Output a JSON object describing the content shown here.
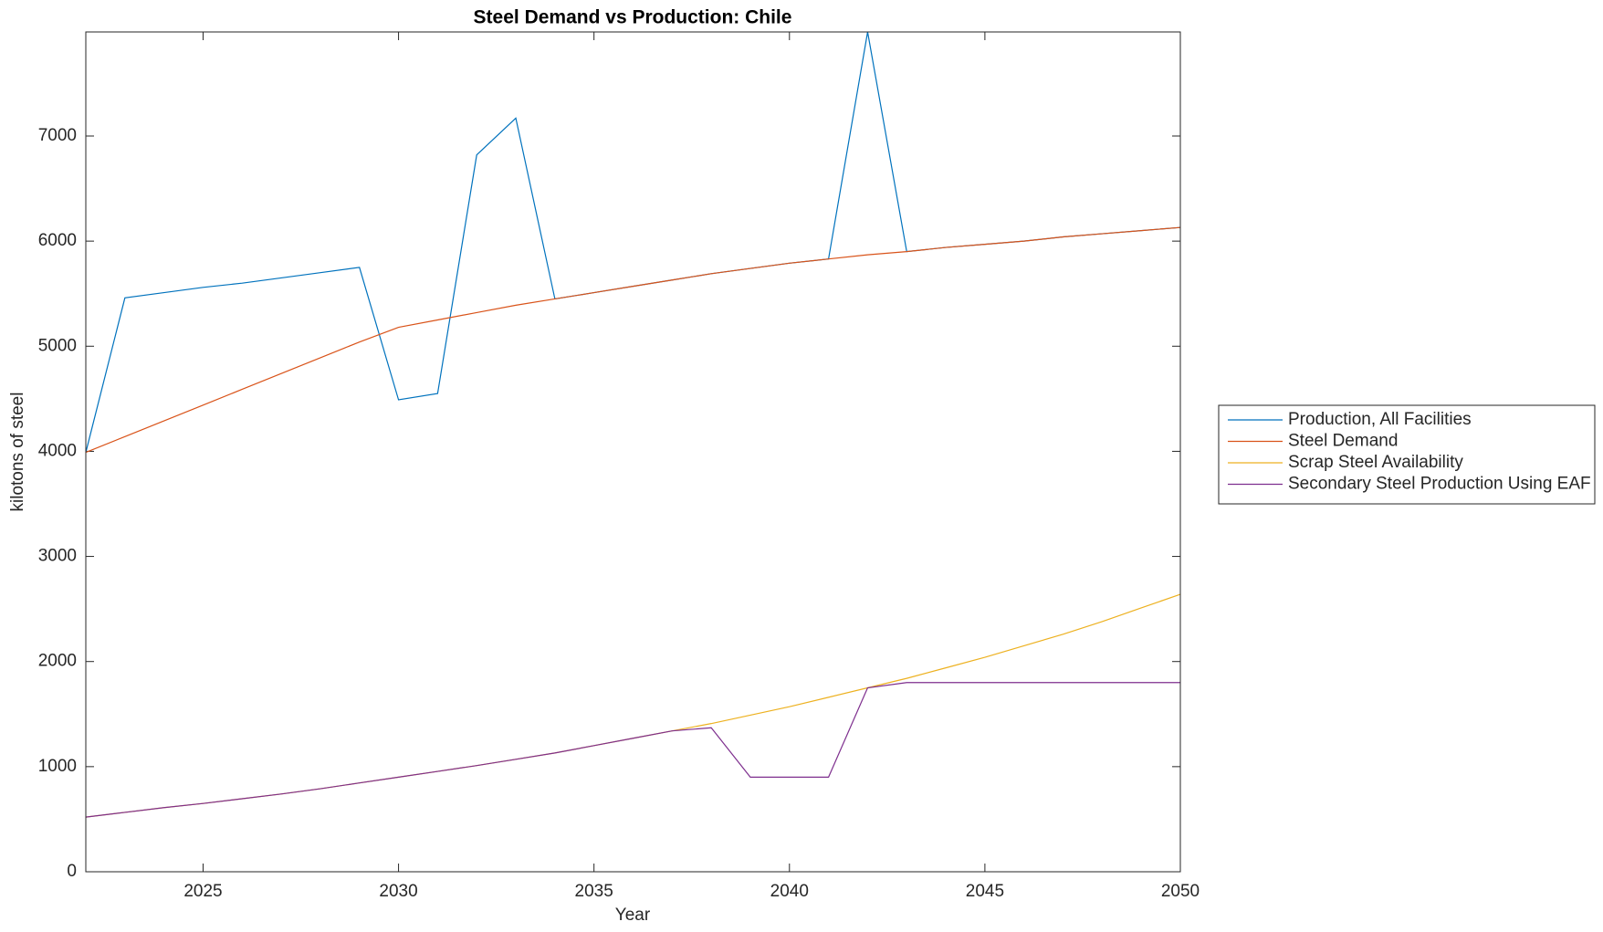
{
  "chart_data": {
    "type": "line",
    "title": "Steel Demand vs Production: Chile",
    "xlabel": "Year",
    "ylabel": "kilotons of steel",
    "x": [
      2022,
      2023,
      2024,
      2025,
      2026,
      2027,
      2028,
      2029,
      2030,
      2031,
      2032,
      2033,
      2034,
      2035,
      2036,
      2037,
      2038,
      2039,
      2040,
      2041,
      2042,
      2043,
      2044,
      2045,
      2046,
      2047,
      2048,
      2049,
      2050
    ],
    "series": [
      {
        "name": "Production, All Facilities",
        "color": "#0072BD",
        "values": [
          3990,
          5460,
          5510,
          5560,
          5600,
          5650,
          5700,
          5750,
          4490,
          4550,
          6820,
          7170,
          5450,
          5510,
          5570,
          5630,
          5690,
          5740,
          5790,
          5830,
          7990,
          5900,
          5940,
          5970,
          6000,
          6040,
          6070,
          6100,
          6130
        ]
      },
      {
        "name": "Steel Demand",
        "color": "#D95319",
        "values": [
          3990,
          4140,
          4290,
          4440,
          4590,
          4740,
          4890,
          5040,
          5180,
          5250,
          5320,
          5390,
          5450,
          5510,
          5570,
          5630,
          5690,
          5740,
          5790,
          5830,
          5870,
          5900,
          5940,
          5970,
          6000,
          6040,
          6070,
          6100,
          6130
        ]
      },
      {
        "name": "Scrap Steel Availability",
        "color": "#EDB120",
        "values": [
          520,
          565,
          610,
          650,
          695,
          740,
          790,
          845,
          900,
          955,
          1010,
          1070,
          1130,
          1200,
          1270,
          1340,
          1410,
          1490,
          1570,
          1660,
          1750,
          1840,
          1940,
          2040,
          2150,
          2260,
          2380,
          2510,
          2640
        ]
      },
      {
        "name": "Secondary Steel Production Using EAF",
        "color": "#7E2F8E",
        "values": [
          520,
          565,
          610,
          650,
          695,
          740,
          790,
          845,
          900,
          955,
          1010,
          1070,
          1130,
          1200,
          1270,
          1340,
          1370,
          900,
          900,
          900,
          1750,
          1800,
          1800,
          1800,
          1800,
          1800,
          1800,
          1800,
          1800
        ]
      }
    ],
    "xlim": [
      2022,
      2050
    ],
    "xticks": [
      2025,
      2030,
      2035,
      2040,
      2045,
      2050
    ],
    "ylim": [
      0,
      7990
    ],
    "yticks": [
      0,
      1000,
      2000,
      3000,
      4000,
      5000,
      6000,
      7000
    ],
    "grid": false,
    "legend": "eastoutside"
  }
}
